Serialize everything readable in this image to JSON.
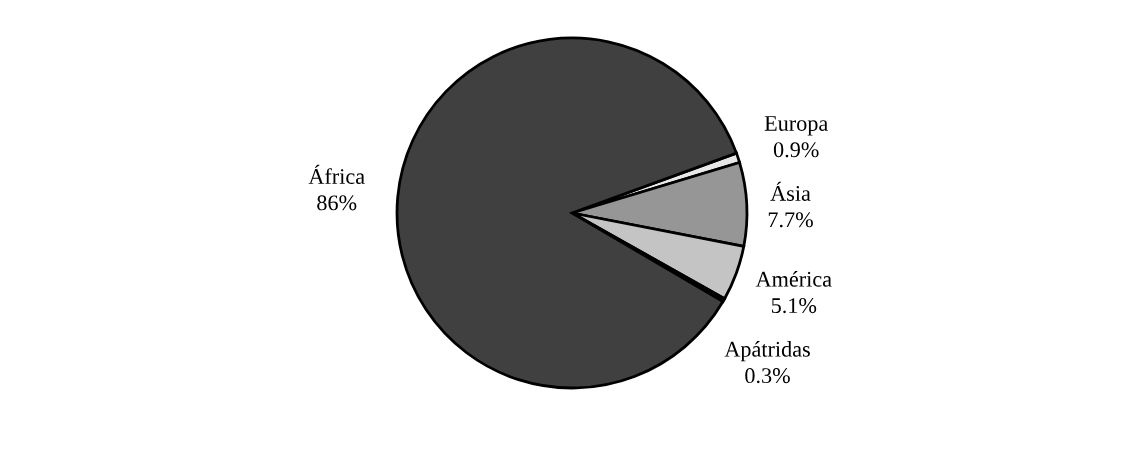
{
  "chart_data": {
    "type": "pie",
    "categories": [
      "Europa",
      "Ásia",
      "América",
      "Apátridas",
      "África"
    ],
    "values": [
      0.9,
      7.7,
      5.1,
      0.3,
      86
    ],
    "value_labels": [
      "0.9%",
      "7.7%",
      "5.1%",
      "0.3%",
      "86%"
    ],
    "colors": [
      "#e8e8e8",
      "#969696",
      "#c4c4c4",
      "#1a1a1a",
      "#404040"
    ],
    "legend": false
  }
}
